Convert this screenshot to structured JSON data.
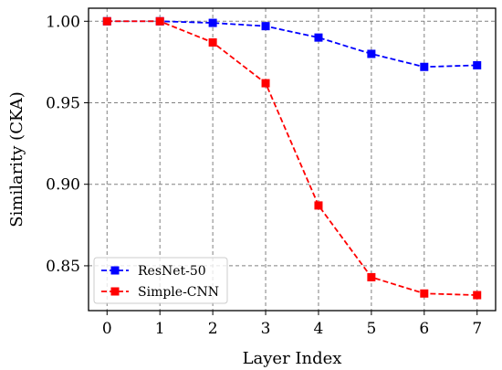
{
  "chart_data": {
    "type": "line",
    "xlabel": "Layer Index",
    "ylabel": "Similarity (CKA)",
    "x": [
      0,
      1,
      2,
      3,
      4,
      5,
      6,
      7
    ],
    "xticks": [
      "0",
      "1",
      "2",
      "3",
      "4",
      "5",
      "6",
      "7"
    ],
    "yticks": [
      "0.85",
      "0.90",
      "0.95",
      "1.00"
    ],
    "xlim": [
      -0.35,
      7.35
    ],
    "ylim": [
      0.8225,
      1.008
    ],
    "grid": true,
    "legend_position": "lower-left",
    "series": [
      {
        "name": "ResNet-50",
        "color": "#0000ff",
        "marker": "square",
        "line_style": "dashed",
        "values": [
          1.0,
          1.0,
          0.999,
          0.997,
          0.99,
          0.98,
          0.972,
          0.973
        ]
      },
      {
        "name": "Simple-CNN",
        "color": "#ff0000",
        "marker": "square",
        "line_style": "dashed",
        "values": [
          1.0,
          1.0,
          0.987,
          0.962,
          0.887,
          0.843,
          0.833,
          0.832
        ]
      }
    ]
  }
}
